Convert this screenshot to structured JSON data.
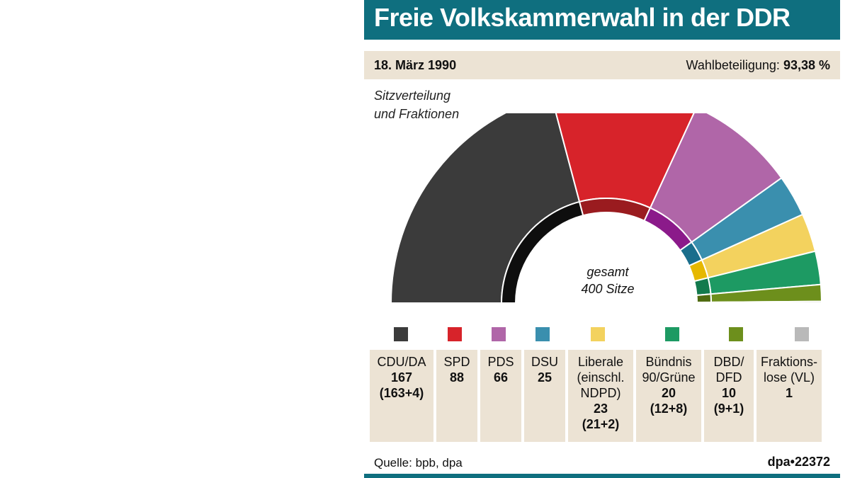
{
  "title": "Freie Volkskammerwahl in der DDR",
  "date": "18. März 1990",
  "turnout_label": "Wahlbeteiligung:",
  "turnout_value": "93,38 %",
  "subtitle_line1": "Sitzverteilung",
  "subtitle_line2": "und Fraktionen",
  "center_line1": "gesamt",
  "center_line2": "400 Sitze",
  "source": "Quelle: bpb, dpa",
  "agency": "dpa•22372",
  "colors": {
    "title_bar": "#0f6f7f",
    "info_bar": "#ece3d4"
  },
  "chart_data": {
    "type": "pie",
    "title": "Freie Volkskammerwahl in der DDR",
    "total": 400,
    "series": [
      {
        "name": "CDU/DA",
        "value": 167,
        "color": "#3b3b3b",
        "inner_color": "#0e0e0e",
        "sub": [
          {
            "label": "CDU",
            "value": 163
          },
          {
            "label": "DA",
            "value": 4
          }
        ]
      },
      {
        "name": "SPD",
        "value": 88,
        "color": "#d7232a",
        "inner_color": "#9a1b1f"
      },
      {
        "name": "PDS",
        "value": 66,
        "color": "#b066a8",
        "inner_color": "#8b1a8a"
      },
      {
        "name": "DSU",
        "value": 25,
        "color": "#3a8fae",
        "inner_color": "#1a6e8c"
      },
      {
        "name": "Liberale",
        "value": 23,
        "color": "#f3d25e",
        "inner_color": "#e6b800",
        "sub": [
          {
            "label": "",
            "value": 21
          },
          {
            "label": "NDPD",
            "value": 2
          }
        ]
      },
      {
        "name": "Bündnis 90/Grüne",
        "value": 20,
        "color": "#1d9a63",
        "inner_color": "#137a4d",
        "sub": [
          {
            "label": "",
            "value": 12
          },
          {
            "label": "",
            "value": 8
          }
        ]
      },
      {
        "name": "DBD/DFD",
        "value": 10,
        "color": "#6d8f1c",
        "inner_color": "#4f6b10",
        "sub": [
          {
            "label": "",
            "value": 9
          },
          {
            "label": "",
            "value": 1
          }
        ]
      },
      {
        "name": "Fraktionslose (VL)",
        "value": 1,
        "color": "#b9b9b9",
        "inner_color": "#8f8f8f"
      }
    ]
  },
  "legend": [
    {
      "name": "CDU/DA",
      "count": "167\n(163+4)",
      "color": "#3b3b3b"
    },
    {
      "name": "SPD",
      "count": "88",
      "color": "#d7232a"
    },
    {
      "name": "PDS",
      "count": "66",
      "color": "#b066a8"
    },
    {
      "name": "DSU",
      "count": "25",
      "color": "#3a8fae"
    },
    {
      "name": "Liberale\n(einschl.\nNDPD)",
      "count": "23\n(21+2)",
      "color": "#f3d25e"
    },
    {
      "name": "Bündnis\n90/Grüne",
      "count": "20\n(12+8)",
      "color": "#1d9a63"
    },
    {
      "name": "DBD/\nDFD",
      "count": "10\n(9+1)",
      "color": "#6d8f1c"
    },
    {
      "name": "Fraktions-\nlose (VL)",
      "count": "1",
      "color": "#b9b9b9"
    }
  ]
}
